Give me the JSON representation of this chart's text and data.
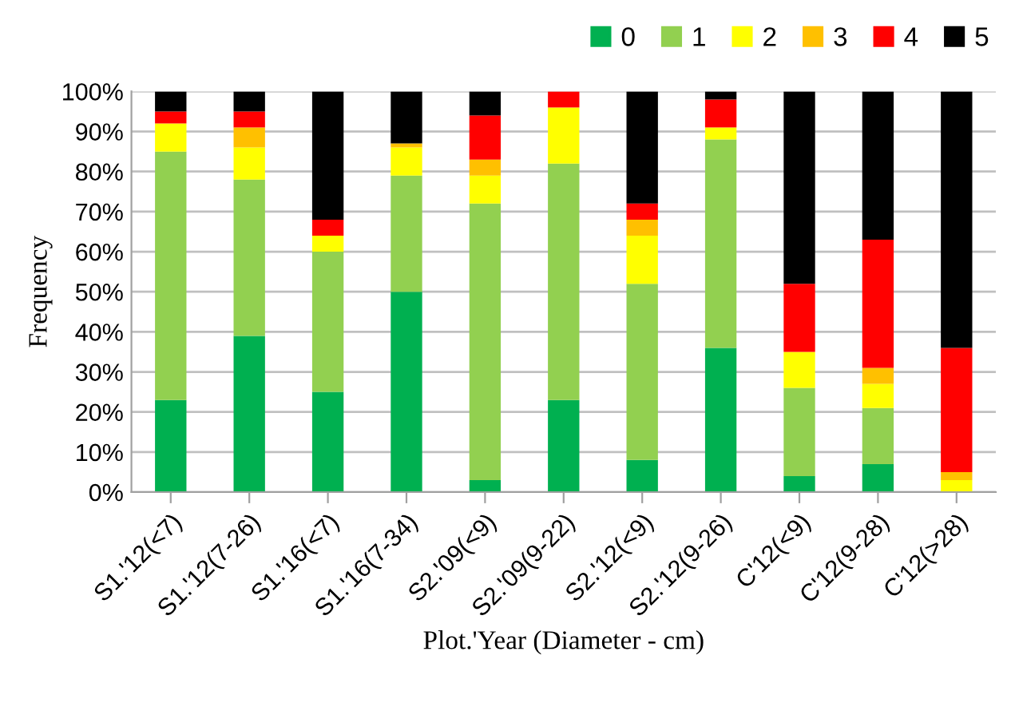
{
  "chart_data": {
    "type": "bar",
    "stacked": true,
    "xlabel": "Plot.'Year (Diameter - cm)",
    "ylabel": "Frequency",
    "categories": [
      "S1.'12(<7)",
      "S1.'12(7-26)",
      "S1.'16(<7)",
      "S1.'16(7-34)",
      "S2.'09(<9)",
      "S2.'09(9-22)",
      "S2.'12(<9)",
      "S2.'12(9-26)",
      "C'12(<9)",
      "C'12(9-28)",
      "C'12(>28)"
    ],
    "series": [
      {
        "name": "0",
        "color": "#00b050",
        "values": [
          23,
          39,
          25,
          50,
          3,
          23,
          8,
          36,
          4,
          7,
          0
        ]
      },
      {
        "name": "1",
        "color": "#92d050",
        "values": [
          62,
          39,
          35,
          29,
          69,
          59,
          44,
          52,
          22,
          14,
          0
        ]
      },
      {
        "name": "2",
        "color": "#ffff00",
        "values": [
          7,
          8,
          4,
          7,
          7,
          14,
          12,
          3,
          9,
          6,
          3
        ]
      },
      {
        "name": "3",
        "color": "#ffc000",
        "values": [
          0,
          5,
          0,
          1,
          4,
          0,
          4,
          0,
          0,
          4,
          2
        ]
      },
      {
        "name": "4",
        "color": "#ff0000",
        "values": [
          3,
          4,
          4,
          0,
          11,
          4,
          4,
          7,
          17,
          32,
          31
        ]
      },
      {
        "name": "5",
        "color": "#000000",
        "values": [
          5,
          5,
          32,
          13,
          6,
          0,
          28,
          2,
          48,
          37,
          64
        ]
      }
    ],
    "ylim": [
      0,
      100
    ],
    "yticks": [
      {
        "value": 0,
        "label": "0%"
      },
      {
        "value": 10,
        "label": "10%"
      },
      {
        "value": 20,
        "label": "20%"
      },
      {
        "value": 30,
        "label": "30%"
      },
      {
        "value": 40,
        "label": "40%"
      },
      {
        "value": 50,
        "label": "50%"
      },
      {
        "value": 60,
        "label": "60%"
      },
      {
        "value": 70,
        "label": "70%"
      },
      {
        "value": 80,
        "label": "80%"
      },
      {
        "value": 90,
        "label": "90%"
      },
      {
        "value": 100,
        "label": "100%"
      }
    ],
    "grid": "y",
    "legend": "top right"
  }
}
